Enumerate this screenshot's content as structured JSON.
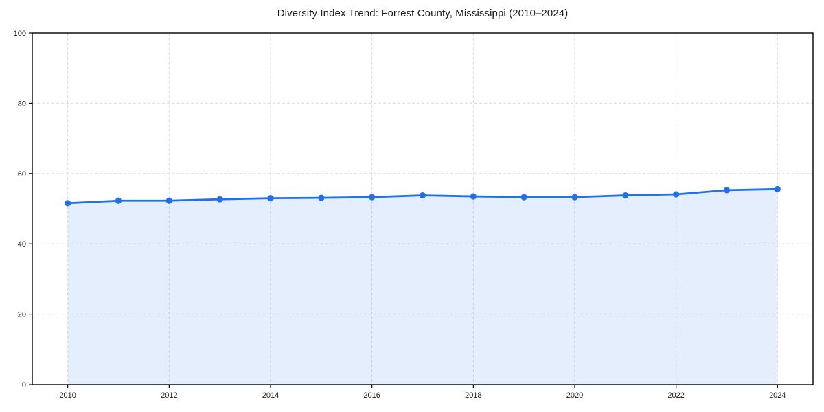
{
  "chart_data": {
    "type": "area",
    "title": "Diversity Index Trend: Forrest County, Mississippi (2010–2024)",
    "xlabel": "",
    "ylabel": "",
    "x": [
      2010,
      2011,
      2012,
      2013,
      2014,
      2015,
      2016,
      2017,
      2018,
      2019,
      2020,
      2021,
      2022,
      2023,
      2024
    ],
    "series": [
      {
        "name": "Diversity Index",
        "values": [
          51.6,
          52.3,
          52.3,
          52.7,
          53.0,
          53.1,
          53.3,
          53.8,
          53.5,
          53.3,
          53.3,
          53.8,
          54.1,
          55.3,
          55.6
        ]
      }
    ],
    "xticks": [
      2010,
      2012,
      2014,
      2016,
      2018,
      2020,
      2022,
      2024
    ],
    "yticks": [
      0,
      20,
      40,
      60,
      80,
      100
    ],
    "ylim": [
      0,
      100
    ],
    "x_margin_fraction": 0.05,
    "grid": "dashed",
    "legend": "none",
    "marker": "circle",
    "colors": {
      "line": "#2171e8",
      "marker": "#2171e8",
      "fill": "rgba(33, 113, 232, 0.12)",
      "grid": "#dcdcdc",
      "spine": "#000000",
      "tick_text": "#1a1a1a",
      "background": "#ffffff"
    }
  }
}
